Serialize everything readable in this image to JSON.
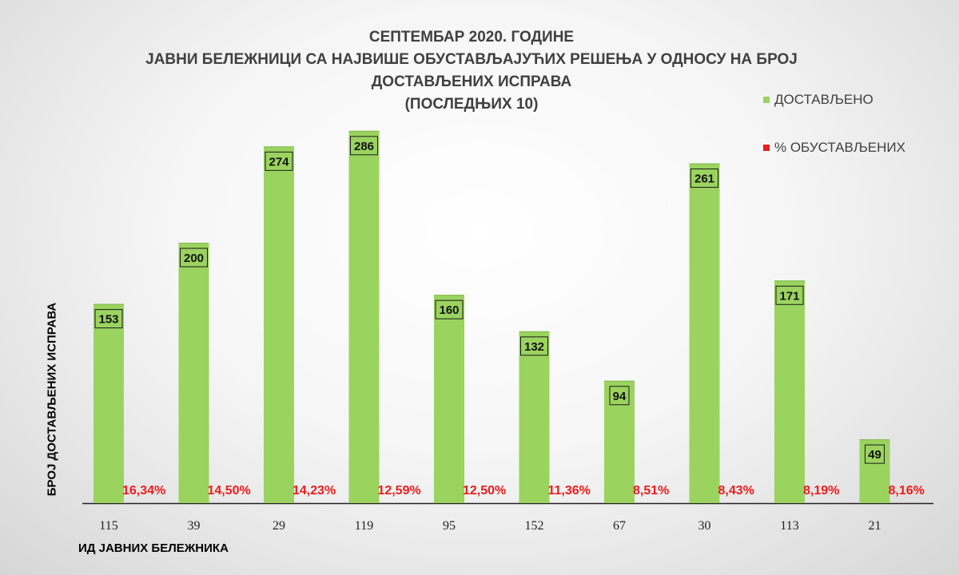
{
  "chart_data": {
    "type": "bar",
    "title_lines": [
      "СЕПТЕМБАР 2020. ГОДИНЕ",
      "ЈАВНИ БЕЛЕЖНИЦИ СА НАЈВИШЕ ОБУСТАВЉАЈУЋИХ РЕШЕЊА У ОДНОСУ НА БРОЈ",
      "ДОСТАВЉЕНИХ ИСПРАВА",
      "(ПОСЛЕДЊИХ 10)"
    ],
    "xlabel": "ИД ЈАВНИХ БЕЛЕЖНИКА",
    "ylabel": "БРОЈ ДОСТАВЉЕНИХ ИСПРАВА",
    "categories": [
      "115",
      "39",
      "29",
      "119",
      "95",
      "152",
      "67",
      "30",
      "113",
      "21"
    ],
    "series": [
      {
        "name": "ДОСТАВЉЕНО",
        "color": "#9bd35f",
        "values": [
          153,
          200,
          274,
          286,
          160,
          132,
          94,
          261,
          171,
          49
        ],
        "labels": [
          "153",
          "200",
          "274",
          "286",
          "160",
          "132",
          "94",
          "261",
          "171",
          "49"
        ]
      },
      {
        "name": "% ОБУСТАВЉЕНИХ",
        "color": "#ee1c1c",
        "values": [
          16.34,
          14.5,
          14.23,
          12.59,
          12.5,
          11.36,
          8.51,
          8.43,
          8.19,
          8.16
        ],
        "labels": [
          "16,34%",
          "14,50%",
          "14,23%",
          "12,59%",
          "12,50%",
          "11,36%",
          "8,51%",
          "8,43%",
          "8,19%",
          "8,16%"
        ]
      }
    ],
    "ylim": [
      0,
      300
    ],
    "grid": false,
    "legend_position": "top-right"
  }
}
